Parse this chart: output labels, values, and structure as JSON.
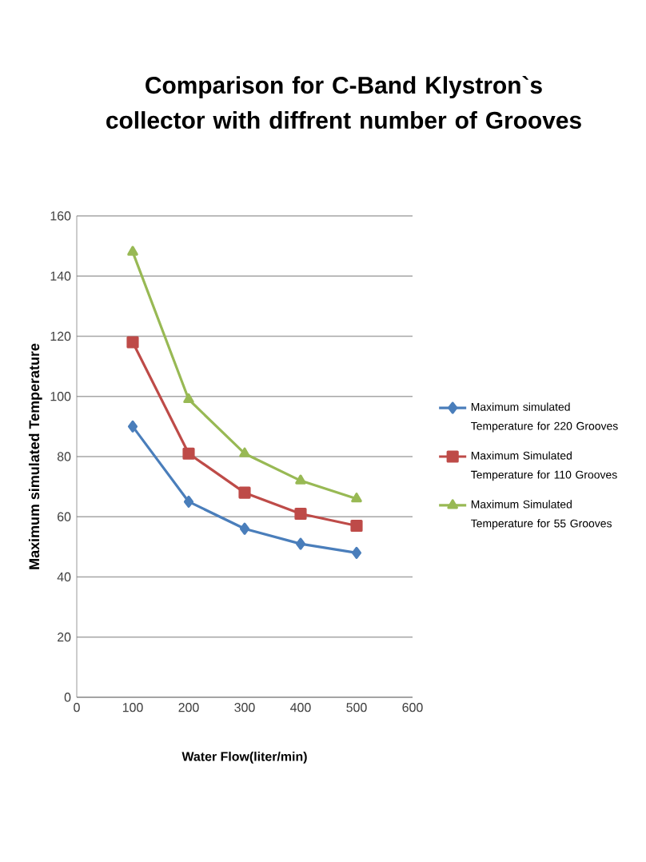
{
  "chart_data": {
    "type": "line",
    "title": "Comparison for C-Band Klystron`s collector with diffrent number of Grooves",
    "xlabel": "Water Flow(liter/min)",
    "ylabel": "Maximum simulated Temperature",
    "x": [
      100,
      200,
      300,
      400,
      500
    ],
    "series": [
      {
        "name": "Maximum simulated Temperature for 220 Grooves",
        "color": "#4a7ebb",
        "marker": "diamond",
        "values": [
          90,
          65,
          56,
          51,
          48
        ]
      },
      {
        "name": "Maximum Simulated Temperature for 110 Grooves",
        "color": "#be4b48",
        "marker": "square",
        "values": [
          118,
          81,
          68,
          61,
          57
        ]
      },
      {
        "name": "Maximum Simulated Temperature for 55 Grooves",
        "color": "#98b954",
        "marker": "triangle",
        "values": [
          148,
          99,
          81,
          72,
          66
        ]
      }
    ],
    "xlim": [
      0,
      600
    ],
    "xticks": [
      0,
      100,
      200,
      300,
      400,
      500,
      600
    ],
    "ylim": [
      0,
      160
    ],
    "yticks": [
      0,
      20,
      40,
      60,
      80,
      100,
      120,
      140,
      160
    ],
    "grid": "y",
    "legend": "right",
    "line_style": "solid"
  }
}
